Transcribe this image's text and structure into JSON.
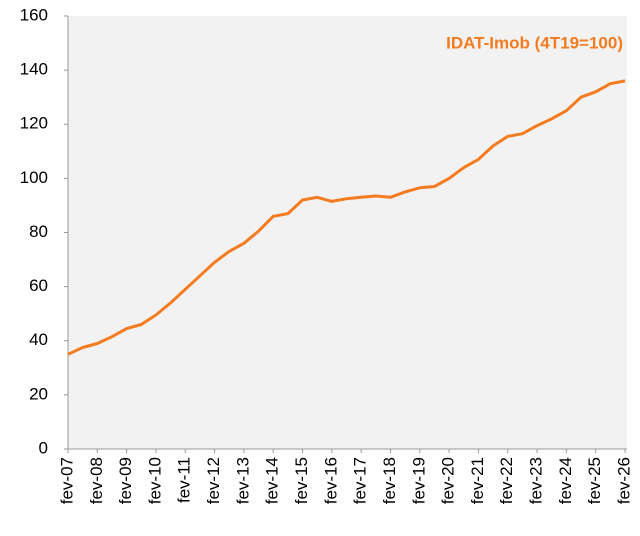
{
  "chart_data": {
    "type": "line",
    "categories": [
      "fev-07",
      null,
      "fev-08",
      null,
      "fev-09",
      null,
      "fev-10",
      null,
      "fev-11",
      null,
      "fev-12",
      null,
      "fev-13",
      null,
      "fev-14",
      null,
      "fev-15",
      null,
      "fev-16",
      null,
      "fev-17",
      null,
      "fev-18",
      null,
      "fev-19",
      null,
      "fev-20",
      null,
      "fev-21",
      null,
      "fev-22",
      null,
      "fev-23",
      null,
      "fev-24",
      null,
      "fev-25",
      null,
      "fev-26"
    ],
    "series": [
      {
        "name": "IDAT-Imob (4T19=100)",
        "color": "#f47b20",
        "values": [
          35,
          37.5,
          39,
          41.5,
          44.5,
          46,
          49.5,
          54,
          59,
          64,
          69,
          73,
          76,
          80.5,
          86,
          87,
          92,
          93,
          91.5,
          92.5,
          93,
          93.5,
          93,
          95,
          96.5,
          97,
          100,
          104,
          107,
          112,
          115.5,
          116.5,
          119.5,
          122,
          125,
          130,
          132,
          135,
          136
        ]
      }
    ],
    "ylim": [
      0,
      160
    ],
    "yticks": [
      0,
      20,
      40,
      60,
      80,
      100,
      120,
      140,
      160
    ],
    "grid": false
  }
}
